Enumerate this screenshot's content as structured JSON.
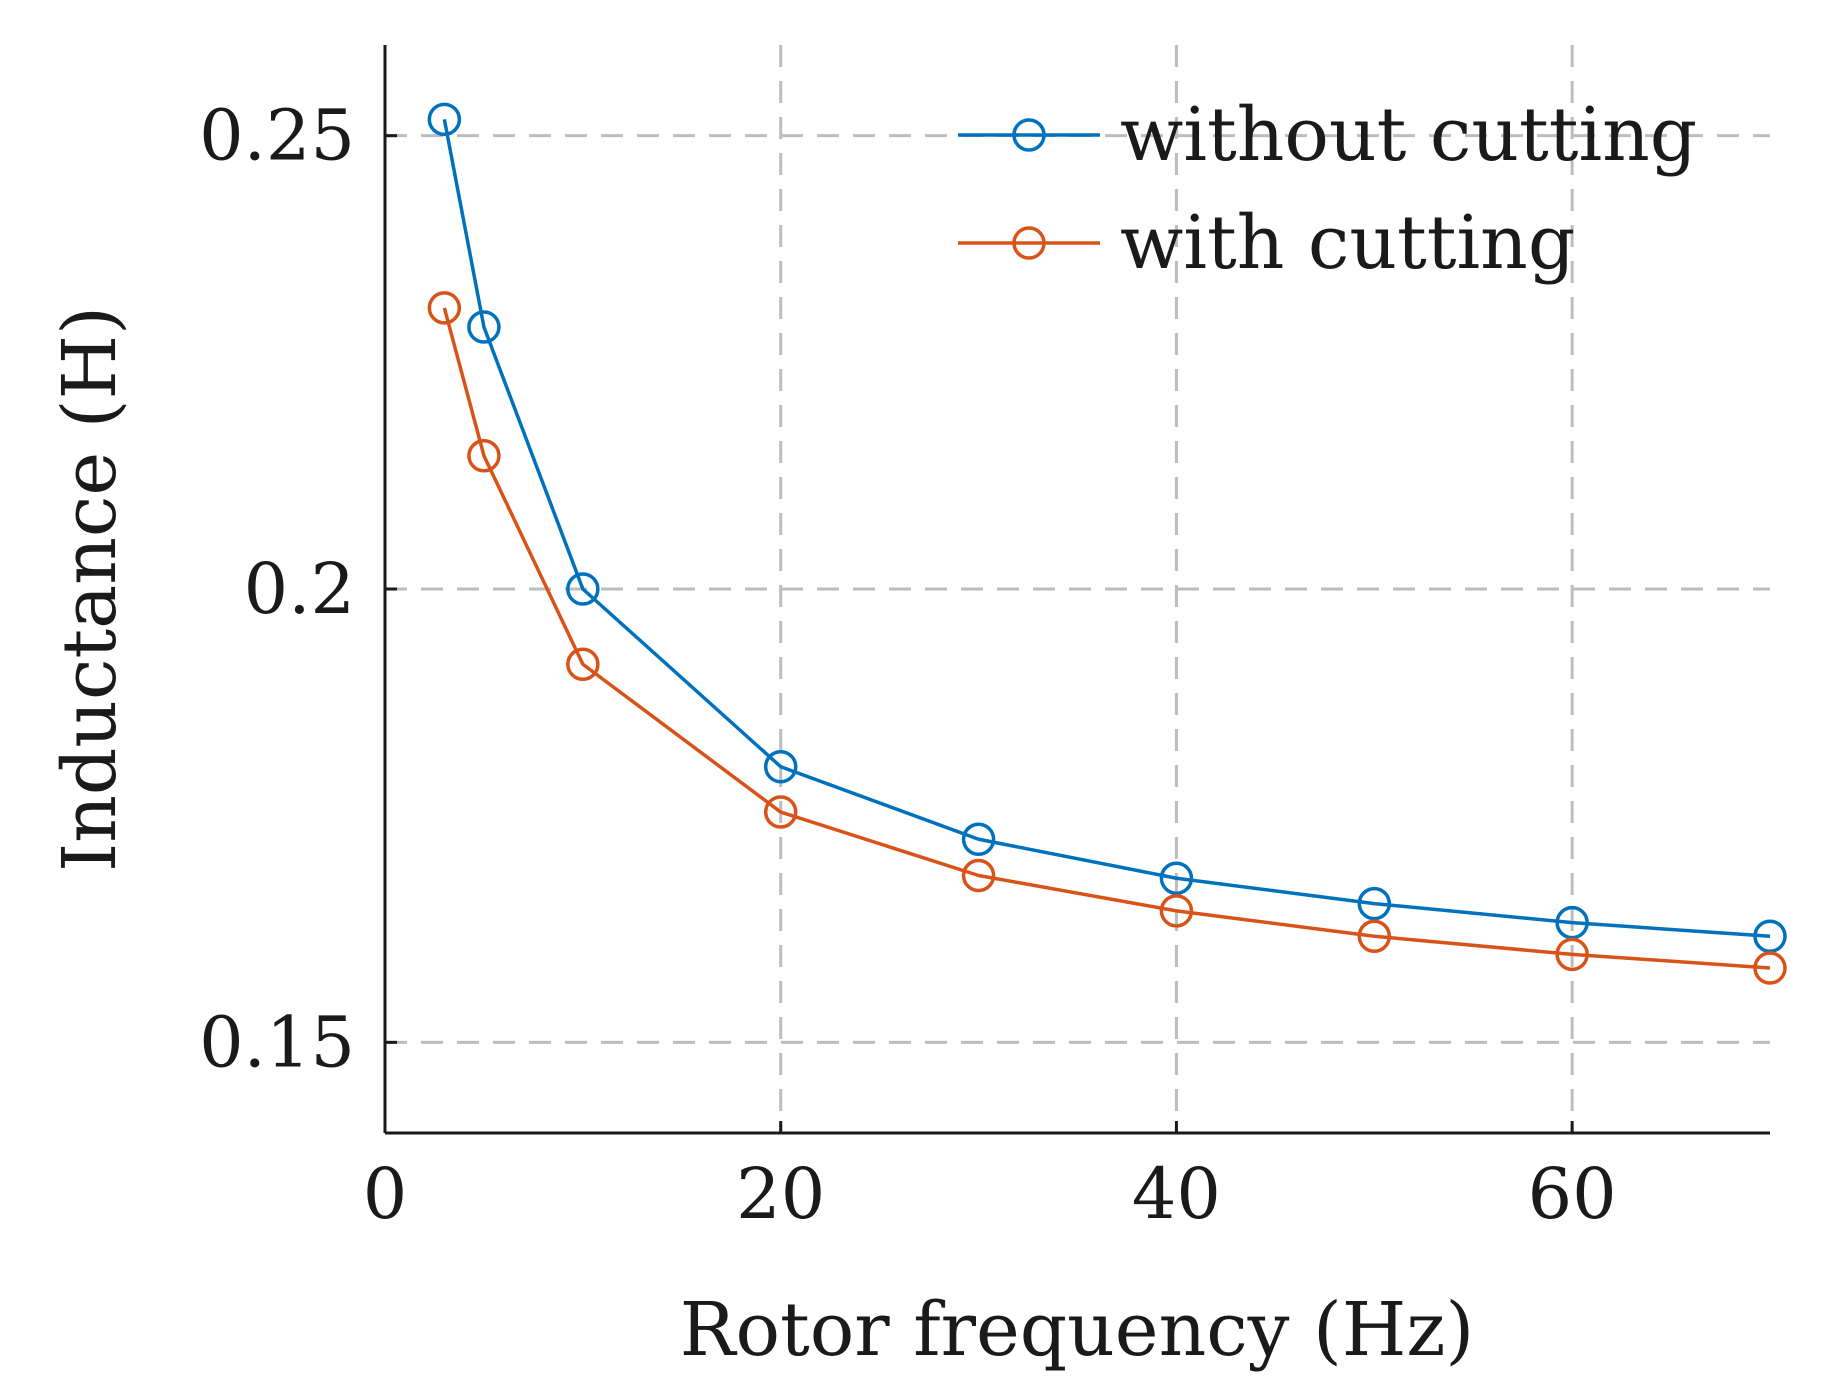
{
  "chart_data": {
    "type": "line",
    "title": "",
    "xlabel": "Rotor frequency (Hz)",
    "ylabel": "Inductance (H)",
    "xlim": [
      0,
      70
    ],
    "ylim": [
      0.14,
      0.26
    ],
    "xticks": [
      0,
      20,
      40,
      60
    ],
    "xtick_labels": [
      "0",
      "20",
      "40",
      "60"
    ],
    "yticks": [
      0.15,
      0.2,
      0.25
    ],
    "ytick_labels": [
      "0.15",
      "0.2",
      "0.25"
    ],
    "grid": true,
    "legend_position": "top-right",
    "x": [
      3,
      5,
      10,
      20,
      30,
      40,
      50,
      60,
      70
    ],
    "series": [
      {
        "name": "without cutting",
        "color": "#0072BD",
        "marker": "circle",
        "values": [
          0.2518,
          0.2289,
          0.2,
          0.1804,
          0.1724,
          0.1681,
          0.1653,
          0.1632,
          0.1617
        ]
      },
      {
        "name": "with cutting",
        "color": "#D95319",
        "marker": "circle",
        "values": [
          0.231,
          0.2147,
          0.1917,
          0.1754,
          0.1684,
          0.1645,
          0.1617,
          0.1597,
          0.1582
        ]
      }
    ]
  }
}
